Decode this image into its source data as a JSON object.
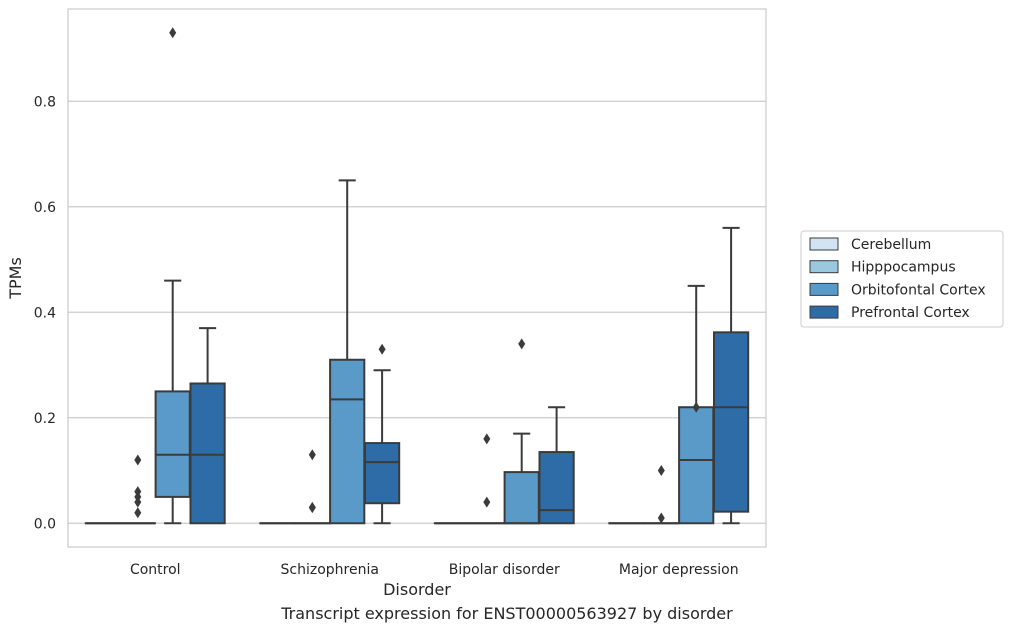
{
  "chart_data": {
    "type": "box",
    "title": "",
    "xlabel": "Disorder",
    "ylabel": "TPMs",
    "ylim": [
      -0.045,
      0.975
    ],
    "yticks": [
      0.0,
      0.2,
      0.4,
      0.6,
      0.8
    ],
    "ytick_labels": [
      "0.0",
      "0.2",
      "0.4",
      "0.6",
      "0.8"
    ],
    "grid": "horizontal",
    "legend_position": "right",
    "categories": [
      "Control",
      "Schizophrenia",
      "Bipolar disorder",
      "Major depression"
    ],
    "series": [
      {
        "name": "Cerebellum",
        "color": "#d2e3f3",
        "boxes": [
          {
            "q1": 0,
            "median": 0,
            "q3": 0,
            "whisker_low": 0,
            "whisker_high": 0,
            "outliers": []
          },
          {
            "q1": 0,
            "median": 0,
            "q3": 0,
            "whisker_low": 0,
            "whisker_high": 0,
            "outliers": []
          },
          {
            "q1": 0,
            "median": 0,
            "q3": 0,
            "whisker_low": 0,
            "whisker_high": 0,
            "outliers": []
          },
          {
            "q1": 0,
            "median": 0,
            "q3": 0,
            "whisker_low": 0,
            "whisker_high": 0,
            "outliers": []
          }
        ]
      },
      {
        "name": "Hipppocampus",
        "color": "#9ac8e0",
        "boxes": [
          {
            "q1": 0,
            "median": 0,
            "q3": 0,
            "whisker_low": 0,
            "whisker_high": 0,
            "outliers": [
              0.04,
              0.06,
              0.02,
              0.05,
              0.12
            ]
          },
          {
            "q1": 0,
            "median": 0,
            "q3": 0,
            "whisker_low": 0,
            "whisker_high": 0,
            "outliers": [
              0.03,
              0.03,
              0.13
            ]
          },
          {
            "q1": 0,
            "median": 0,
            "q3": 0,
            "whisker_low": 0,
            "whisker_high": 0,
            "outliers": [
              0.04,
              0.16
            ]
          },
          {
            "q1": 0,
            "median": 0,
            "q3": 0,
            "whisker_low": 0,
            "whisker_high": 0,
            "outliers": [
              0.01,
              0.1
            ]
          }
        ]
      },
      {
        "name": "Orbitofontal Cortex",
        "color": "#5a9ac9",
        "boxes": [
          {
            "q1": 0.05,
            "median": 0.13,
            "q3": 0.25,
            "whisker_low": 0,
            "whisker_high": 0.46,
            "outliers": [
              0.93
            ]
          },
          {
            "q1": 0,
            "median": 0.235,
            "q3": 0.31,
            "whisker_low": 0,
            "whisker_high": 0.65,
            "outliers": []
          },
          {
            "q1": 0,
            "median": 0,
            "q3": 0.097,
            "whisker_low": 0,
            "whisker_high": 0.17,
            "outliers": [
              0.34
            ]
          },
          {
            "q1": 0,
            "median": 0.12,
            "q3": 0.22,
            "whisker_low": 0,
            "whisker_high": 0.45,
            "outliers": [
              0.22
            ]
          }
        ]
      },
      {
        "name": "Prefrontal Cortex",
        "color": "#2e6ca8",
        "boxes": [
          {
            "q1": 0,
            "median": 0.13,
            "q3": 0.265,
            "whisker_low": 0,
            "whisker_high": 0.37,
            "outliers": []
          },
          {
            "q1": 0.038,
            "median": 0.116,
            "q3": 0.152,
            "whisker_low": 0,
            "whisker_high": 0.29,
            "outliers": [
              0.33
            ]
          },
          {
            "q1": 0,
            "median": 0.025,
            "q3": 0.135,
            "whisker_low": 0,
            "whisker_high": 0.22,
            "outliers": []
          },
          {
            "q1": 0.022,
            "median": 0.22,
            "q3": 0.362,
            "whisker_low": 0,
            "whisker_high": 0.56,
            "outliers": []
          }
        ]
      }
    ]
  },
  "caption": "Transcript expression for ENST00000563927 by disorder"
}
